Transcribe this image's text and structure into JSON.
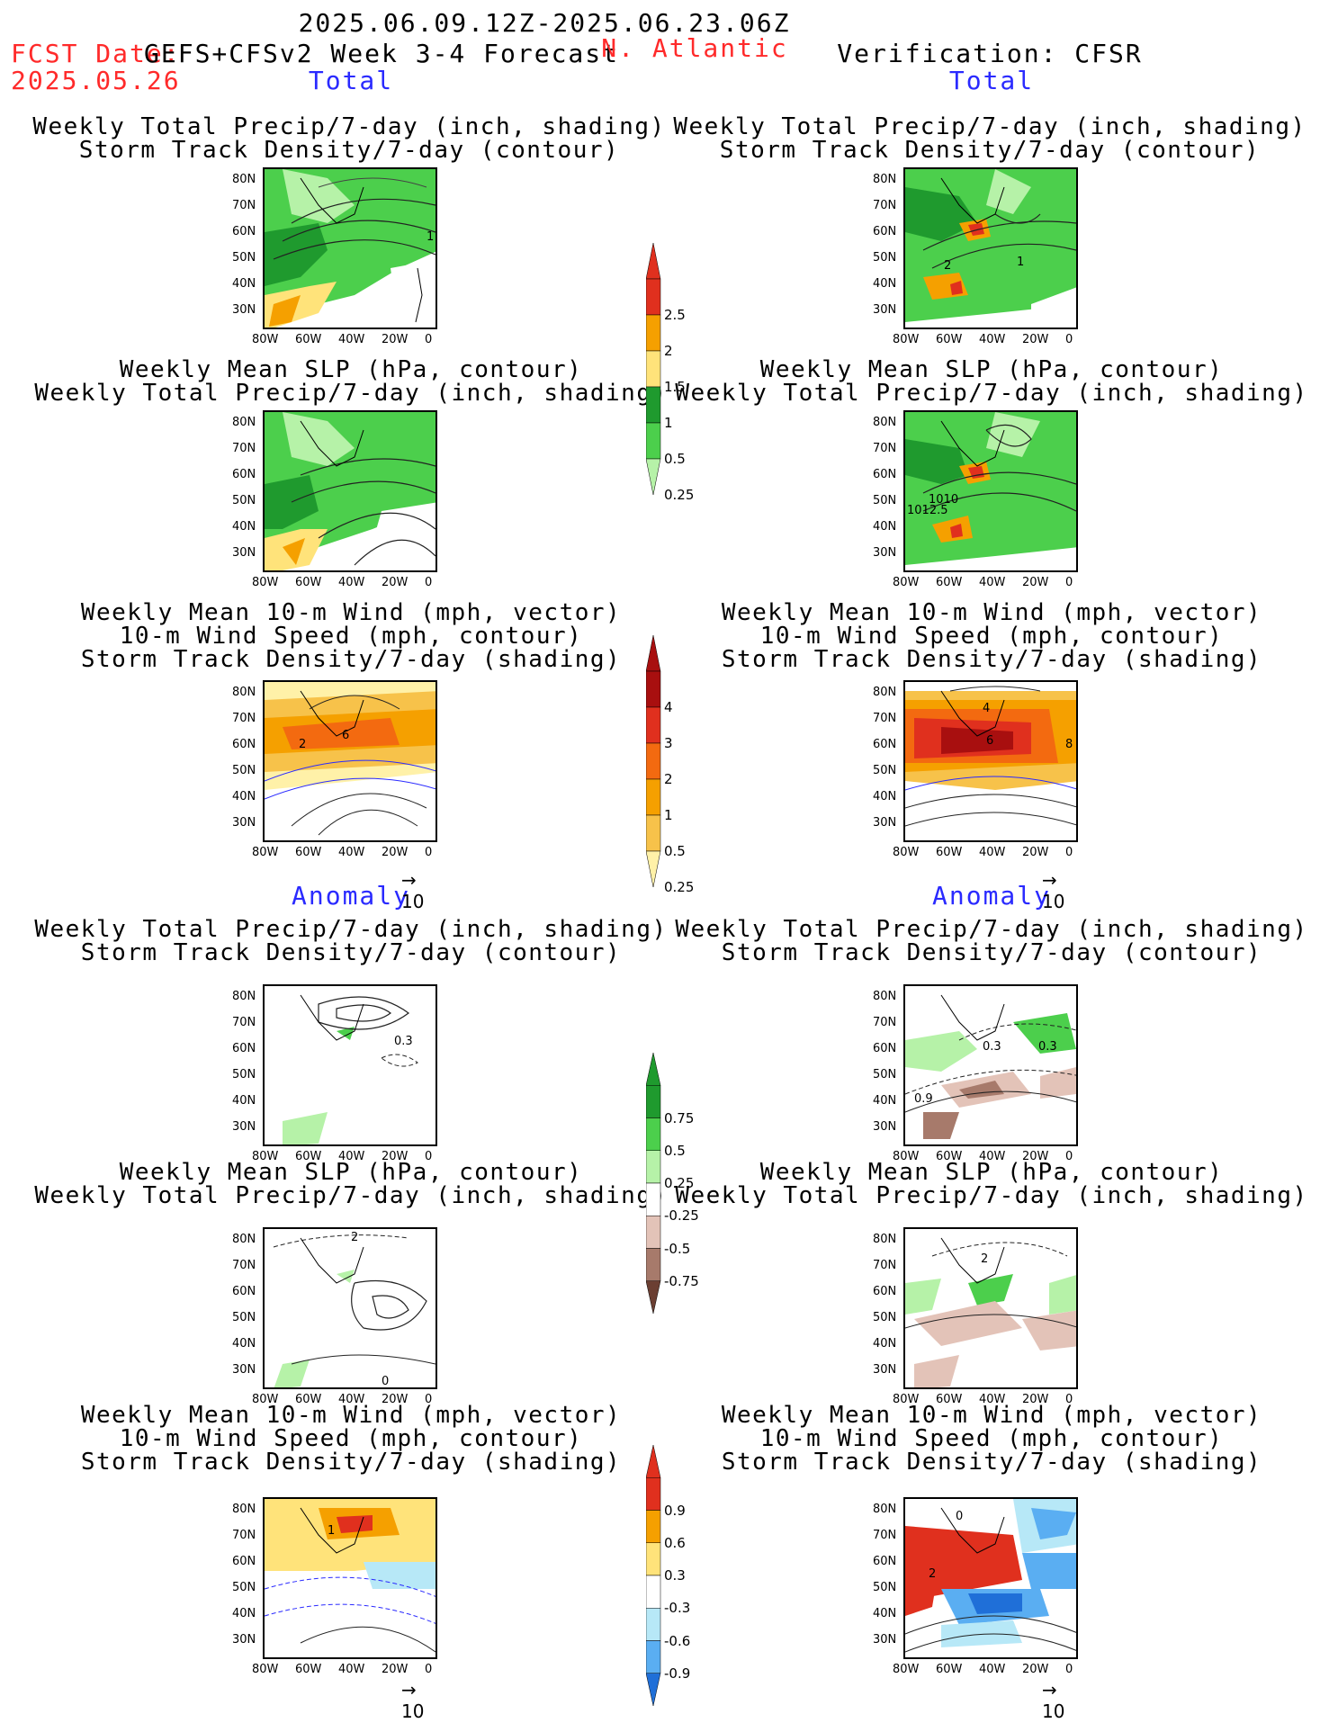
{
  "header": {
    "period": "2025.06.09.12Z-2025.06.23.06Z",
    "fcst_date_label": "FCST Date:",
    "model": "GEFS+CFSv2 Week 3-4 Forecast",
    "fcst_date": "2025.05.26",
    "region": "N. Atlantic",
    "verification": "Verification: CFSR"
  },
  "sections": {
    "total": "Total",
    "anomaly": "Anomaly"
  },
  "panel_titles": {
    "precip_storm": [
      "Weekly Total Precip/7-day (inch, shading)",
      "Storm Track Density/7-day (contour)"
    ],
    "slp_precip": [
      "Weekly Mean SLP (hPa, contour)",
      "Weekly Total Precip/7-day (inch, shading)"
    ],
    "wind_storm": [
      "Weekly Mean 10-m Wind (mph, vector)",
      "10-m Wind Speed (mph, contour)",
      "Storm Track Density/7-day (shading)"
    ]
  },
  "axes": {
    "lat_labels": [
      "80N",
      "70N",
      "60N",
      "50N",
      "40N",
      "30N"
    ],
    "lon_labels": [
      "80W",
      "60W",
      "40W",
      "20W",
      "0"
    ]
  },
  "vector_ref": "10",
  "colorbars": {
    "precip_total": {
      "labels": [
        "2.5",
        "2",
        "1.5",
        "1",
        "0.5",
        "0.25"
      ],
      "colors": [
        "#e0301e",
        "#f5a000",
        "#ffe37a",
        "#1f9a2e",
        "#4ccf4c",
        "#b6f2a8"
      ]
    },
    "storm_total": {
      "labels": [
        "4",
        "3",
        "2",
        "1",
        "0.5",
        "0.25"
      ],
      "colors": [
        "#a80f0f",
        "#e0301e",
        "#f36a10",
        "#f5a000",
        "#f7c24a",
        "#fff1a8"
      ]
    },
    "precip_anom": {
      "labels": [
        "0.75",
        "0.5",
        "0.25",
        "-0.25",
        "-0.5",
        "-0.75"
      ],
      "colors": [
        "#1f9a2e",
        "#4ccf4c",
        "#b6f2a8",
        "#ffffff",
        "#e3c3b8",
        "#a77a6b",
        "#6b3f32"
      ]
    },
    "storm_anom": {
      "labels": [
        "0.9",
        "0.6",
        "0.3",
        "-0.3",
        "-0.6",
        "-0.9"
      ],
      "colors": [
        "#e0301e",
        "#f5a000",
        "#ffe37a",
        "#ffffff",
        "#b7e8f7",
        "#5aaef2",
        "#1f6fd8"
      ]
    }
  },
  "contour_labels": {
    "fc_precip": "1",
    "ver_precip": [
      "2",
      "1"
    ],
    "ver_slp": [
      "1010",
      "1012.5"
    ],
    "fc_wind": [
      "2",
      "6"
    ],
    "ver_wind": [
      "4",
      "6",
      "8"
    ],
    "fc_anom_precip": "0.3",
    "ver_anom_precip": [
      "0.3",
      "0.3",
      "0.9"
    ],
    "fc_anom_slp": [
      "2",
      "0"
    ],
    "ver_anom_slp": "2",
    "fc_anom_wind": "1",
    "ver_anom_wind": [
      "2",
      "0"
    ]
  }
}
